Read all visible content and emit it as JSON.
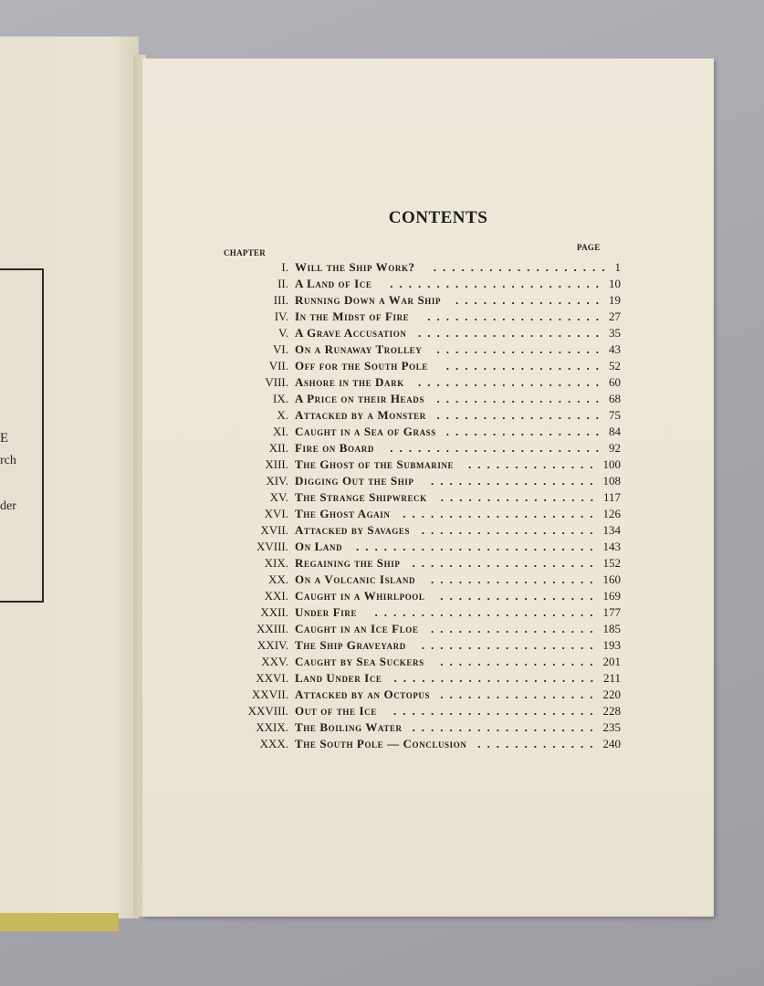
{
  "left_page": {
    "fragments": [
      "E",
      "rch",
      "der"
    ]
  },
  "contents": {
    "title": "CONTENTS",
    "chapter_header": "CHAPTER",
    "page_header": "PAGE",
    "entries": [
      {
        "num": "I.",
        "title": "Will the Ship Work?",
        "page": "1"
      },
      {
        "num": "II.",
        "title": "A Land of Ice",
        "page": "10"
      },
      {
        "num": "III.",
        "title": "Running Down a War Ship",
        "page": "19"
      },
      {
        "num": "IV.",
        "title": "In the Midst of Fire",
        "page": "27"
      },
      {
        "num": "V.",
        "title": "A Grave Accusation",
        "page": "35"
      },
      {
        "num": "VI.",
        "title": "On a Runaway Trolley",
        "page": "43"
      },
      {
        "num": "VII.",
        "title": "Off for the South Pole",
        "page": "52"
      },
      {
        "num": "VIII.",
        "title": "Ashore in the Dark",
        "page": "60"
      },
      {
        "num": "IX.",
        "title": "A Price on their Heads",
        "page": "68"
      },
      {
        "num": "X.",
        "title": "Attacked by a Monster",
        "page": "75"
      },
      {
        "num": "XI.",
        "title": "Caught in a Sea of Grass",
        "page": "84"
      },
      {
        "num": "XII.",
        "title": "Fire on Board",
        "page": "92"
      },
      {
        "num": "XIII.",
        "title": "The Ghost of the Submarine",
        "page": "100"
      },
      {
        "num": "XIV.",
        "title": "Digging Out the Ship",
        "page": "108"
      },
      {
        "num": "XV.",
        "title": "The Strange Shipwreck",
        "page": "117"
      },
      {
        "num": "XVI.",
        "title": "The Ghost Again",
        "page": "126"
      },
      {
        "num": "XVII.",
        "title": "Attacked by Savages",
        "page": "134"
      },
      {
        "num": "XVIII.",
        "title": "On Land",
        "page": "143"
      },
      {
        "num": "XIX.",
        "title": "Regaining the Ship",
        "page": "152"
      },
      {
        "num": "XX.",
        "title": "On a Volcanic Island",
        "page": "160"
      },
      {
        "num": "XXI.",
        "title": "Caught in a Whirlpool",
        "page": "169"
      },
      {
        "num": "XXII.",
        "title": "Under Fire",
        "page": "177"
      },
      {
        "num": "XXIII.",
        "title": "Caught in an Ice Floe",
        "page": "185"
      },
      {
        "num": "XXIV.",
        "title": "The Ship Graveyard",
        "page": "193"
      },
      {
        "num": "XXV.",
        "title": "Caught by Sea Suckers",
        "page": "201"
      },
      {
        "num": "XXVI.",
        "title": "Land Under Ice",
        "page": "211"
      },
      {
        "num": "XXVII.",
        "title": "Attacked by an Octopus",
        "page": "220"
      },
      {
        "num": "XXVIII.",
        "title": "Out of the Ice",
        "page": "228"
      },
      {
        "num": "XXIX.",
        "title": "The Boiling Water",
        "page": "235"
      },
      {
        "num": "XXX.",
        "title": "The South Pole — Conclusion",
        "page": "240"
      }
    ]
  },
  "colors": {
    "page": "#ece6d6",
    "ink": "#1f1c18",
    "background": "#a9a8ad",
    "cover_edge": "#c9b85a"
  }
}
